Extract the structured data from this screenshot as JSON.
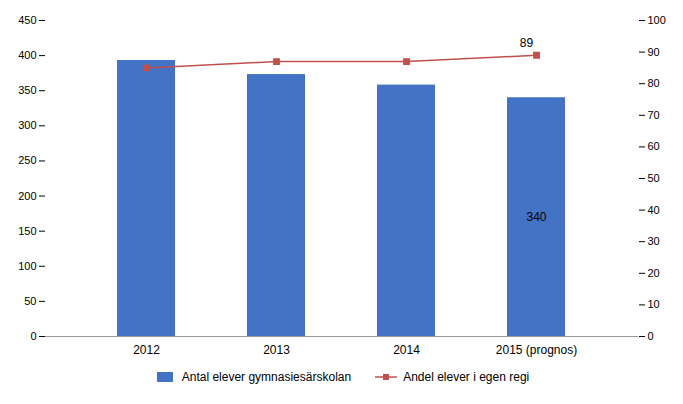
{
  "chart_data": {
    "type": "bar",
    "categories": [
      "2012",
      "2013",
      "2014",
      "2015 (prognos)"
    ],
    "series": [
      {
        "name": "Antal elever gymnasiesärskolan",
        "type": "bar",
        "color": "#4472C4",
        "values": [
          393,
          373,
          358,
          340
        ]
      },
      {
        "name": "Andel elever i egen regi",
        "type": "line",
        "color": "#C0504D",
        "marker": "square",
        "axis": "y2",
        "values": [
          85,
          87,
          87,
          89
        ]
      }
    ],
    "ylim": [
      0,
      450
    ],
    "yticks": [
      0,
      50,
      100,
      150,
      200,
      250,
      300,
      350,
      400,
      450
    ],
    "y2lim": [
      0,
      100
    ],
    "y2ticks": [
      0,
      10,
      20,
      30,
      40,
      50,
      60,
      70,
      80,
      90,
      100
    ],
    "annotations": [
      {
        "text": "340",
        "category": "2015 (prognos)",
        "series": "Antal elever gymnasiesärskolan"
      },
      {
        "text": "89",
        "category": "2015 (prognos)",
        "series": "Andel elever i egen regi"
      }
    ],
    "legend": "bottom",
    "grid": false
  }
}
